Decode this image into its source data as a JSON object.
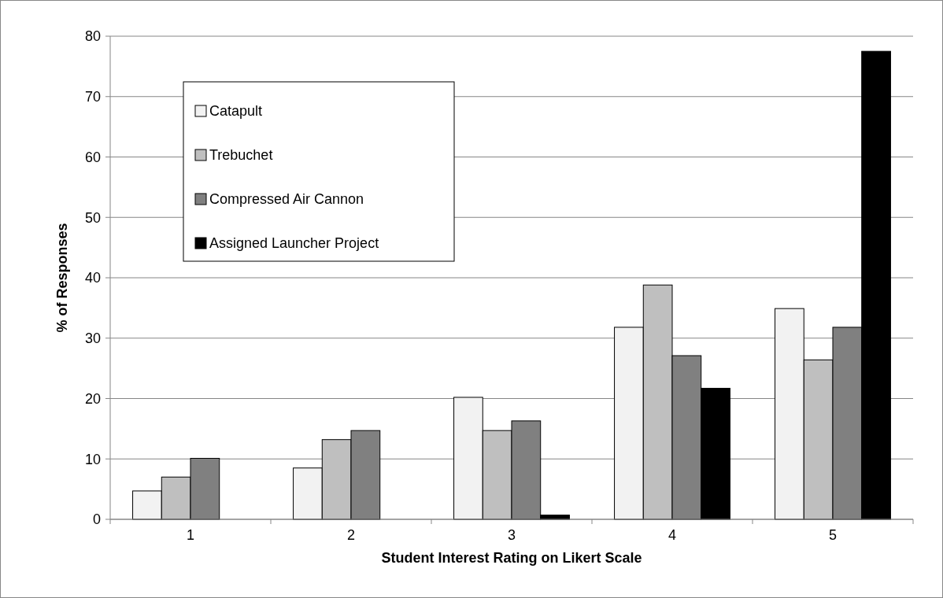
{
  "chart_data": {
    "type": "bar",
    "xlabel": "Student Interest Rating on Likert Scale",
    "ylabel": "% of Responses",
    "categories": [
      "1",
      "2",
      "3",
      "4",
      "5"
    ],
    "series": [
      {
        "name": "Catapult",
        "color": "#f2f2f2",
        "values": [
          4.7,
          8.5,
          20.2,
          31.8,
          34.9
        ]
      },
      {
        "name": "Trebuchet",
        "color": "#bfbfbf",
        "values": [
          7.0,
          13.2,
          14.7,
          38.8,
          26.4
        ]
      },
      {
        "name": "Compressed Air Cannon",
        "color": "#808080",
        "values": [
          10.1,
          14.7,
          16.3,
          27.1,
          31.8
        ]
      },
      {
        "name": "Assigned Launcher Project",
        "color": "#000000",
        "values": [
          0,
          0,
          0.7,
          21.7,
          77.5
        ]
      }
    ],
    "ylim": [
      0,
      80
    ],
    "yticks": [
      0,
      10,
      20,
      30,
      40,
      50,
      60,
      70,
      80
    ],
    "grid": "y",
    "legend": "top left"
  }
}
